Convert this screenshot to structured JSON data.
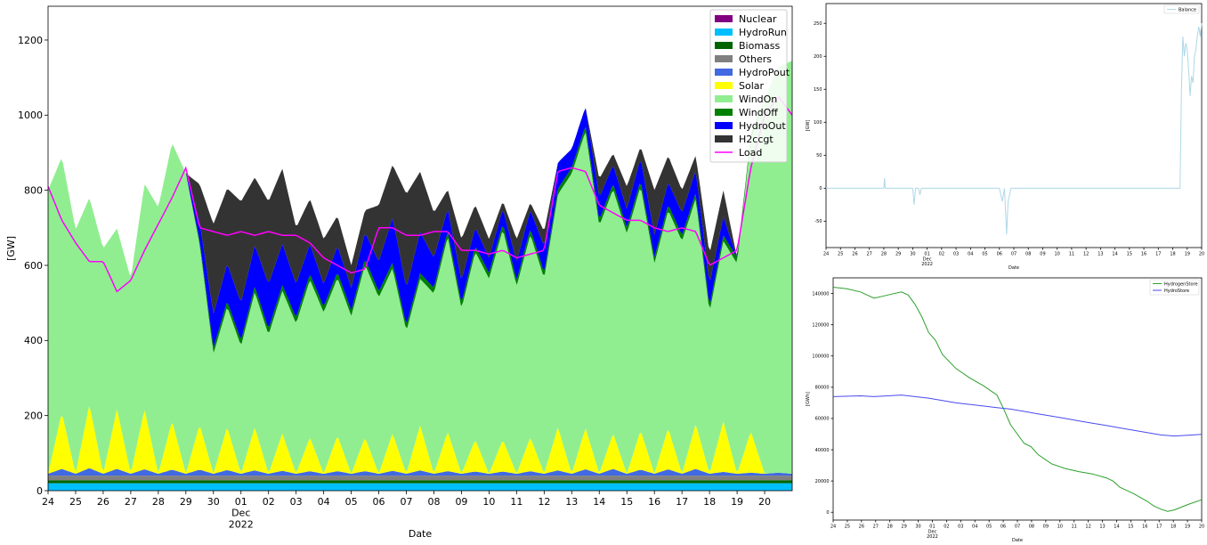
{
  "chart_data": [
    {
      "type": "area",
      "title": "",
      "xlabel": "Date",
      "ylabel": "[GW]",
      "ylim": [
        0,
        1290
      ],
      "yticks": [
        0,
        200,
        400,
        600,
        800,
        1000,
        1200
      ],
      "xlim": [
        24,
        51
      ],
      "xticks": [
        {
          "x": 24,
          "label": "24"
        },
        {
          "x": 25,
          "label": "25"
        },
        {
          "x": 26,
          "label": "26"
        },
        {
          "x": 27,
          "label": "27"
        },
        {
          "x": 28,
          "label": "28"
        },
        {
          "x": 29,
          "label": "29"
        },
        {
          "x": 30,
          "label": "30"
        },
        {
          "x": 31,
          "label": "01",
          "sub": [
            "Dec",
            "2022"
          ]
        },
        {
          "x": 32,
          "label": "02"
        },
        {
          "x": 33,
          "label": "03"
        },
        {
          "x": 34,
          "label": "04"
        },
        {
          "x": 35,
          "label": "05"
        },
        {
          "x": 36,
          "label": "06"
        },
        {
          "x": 37,
          "label": "07"
        },
        {
          "x": 38,
          "label": "08"
        },
        {
          "x": 39,
          "label": "09"
        },
        {
          "x": 40,
          "label": "10"
        },
        {
          "x": 41,
          "label": "11"
        },
        {
          "x": 42,
          "label": "12"
        },
        {
          "x": 43,
          "label": "13"
        },
        {
          "x": 44,
          "label": "14"
        },
        {
          "x": 45,
          "label": "15"
        },
        {
          "x": 46,
          "label": "16"
        },
        {
          "x": 47,
          "label": "17"
        },
        {
          "x": 48,
          "label": "18"
        },
        {
          "x": 49,
          "label": "19"
        },
        {
          "x": 50,
          "label": "20"
        }
      ],
      "legend_position": "top-right",
      "x": [
        24,
        24.5,
        25,
        25.5,
        26,
        26.5,
        27,
        27.5,
        28,
        28.5,
        29,
        29.5,
        30,
        30.5,
        31,
        31.5,
        32,
        32.5,
        33,
        33.5,
        34,
        34.5,
        35,
        35.5,
        36,
        36.5,
        37,
        37.5,
        38,
        38.5,
        39,
        39.5,
        40,
        40.5,
        41,
        41.5,
        42,
        42.5,
        43,
        43.5,
        44,
        44.5,
        45,
        45.5,
        46,
        46.5,
        47,
        47.5,
        48,
        48.5,
        49,
        49.5,
        50,
        50.5,
        51
      ],
      "series": [
        {
          "name": "Nuclear",
          "color": "#800080",
          "values": [
            0,
            0,
            0,
            0,
            0,
            0,
            0,
            0,
            0,
            0,
            0,
            0,
            0,
            0,
            0,
            0,
            0,
            0,
            0,
            0,
            0,
            0,
            0,
            0,
            0,
            0,
            0,
            0,
            0,
            0,
            0,
            0,
            0,
            0,
            0,
            0,
            0,
            0,
            0,
            0,
            0,
            0,
            0,
            0,
            0,
            0,
            0,
            0,
            0,
            0,
            0,
            0,
            0,
            0,
            0
          ]
        },
        {
          "name": "HydroRun",
          "color": "#00bfff",
          "values": [
            20,
            20,
            20,
            20,
            20,
            20,
            20,
            20,
            20,
            20,
            20,
            20,
            20,
            20,
            20,
            20,
            20,
            20,
            20,
            20,
            20,
            20,
            20,
            20,
            20,
            20,
            20,
            20,
            20,
            20,
            20,
            20,
            20,
            20,
            20,
            20,
            20,
            20,
            20,
            20,
            20,
            20,
            20,
            20,
            20,
            20,
            20,
            20,
            20,
            20,
            20,
            20,
            20,
            20,
            20
          ]
        },
        {
          "name": "Biomass",
          "color": "#006400",
          "values": [
            8,
            8,
            8,
            8,
            8,
            8,
            8,
            8,
            8,
            8,
            8,
            8,
            8,
            8,
            8,
            8,
            8,
            8,
            8,
            8,
            8,
            8,
            8,
            8,
            8,
            8,
            8,
            8,
            8,
            8,
            8,
            8,
            8,
            8,
            8,
            8,
            8,
            8,
            8,
            8,
            8,
            8,
            8,
            8,
            8,
            8,
            8,
            8,
            8,
            8,
            8,
            8,
            8,
            8,
            8
          ]
        },
        {
          "name": "Others",
          "color": "#808080",
          "values": [
            12,
            12,
            12,
            12,
            12,
            12,
            12,
            12,
            12,
            12,
            12,
            12,
            12,
            12,
            12,
            12,
            12,
            12,
            12,
            12,
            12,
            12,
            12,
            12,
            12,
            12,
            12,
            12,
            12,
            12,
            12,
            12,
            12,
            12,
            12,
            12,
            12,
            12,
            12,
            12,
            12,
            12,
            12,
            12,
            12,
            12,
            12,
            12,
            12,
            12,
            12,
            12,
            12,
            12,
            12
          ]
        },
        {
          "name": "HydroPout",
          "color": "#4169e1",
          "values": [
            5,
            18,
            5,
            20,
            5,
            18,
            5,
            17,
            5,
            16,
            5,
            16,
            5,
            15,
            5,
            14,
            5,
            13,
            5,
            12,
            5,
            12,
            5,
            12,
            5,
            13,
            5,
            14,
            5,
            12,
            5,
            11,
            5,
            11,
            5,
            12,
            5,
            14,
            5,
            17,
            5,
            18,
            5,
            16,
            5,
            17,
            5,
            18,
            5,
            10,
            5,
            8,
            5,
            8,
            5
          ]
        },
        {
          "name": "Solar",
          "color": "#ffff00",
          "values": [
            0,
            150,
            0,
            170,
            0,
            160,
            0,
            160,
            0,
            130,
            0,
            120,
            0,
            115,
            0,
            115,
            0,
            100,
            0,
            90,
            0,
            95,
            0,
            90,
            0,
            100,
            0,
            120,
            0,
            105,
            0,
            85,
            0,
            85,
            0,
            90,
            0,
            115,
            0,
            110,
            0,
            95,
            0,
            105,
            0,
            110,
            0,
            120,
            0,
            135,
            0,
            110,
            0,
            0,
            0
          ]
        },
        {
          "name": "WindOn",
          "color": "#90ee90",
          "values": [
            755,
            680,
            650,
            550,
            600,
            480,
            520,
            600,
            710,
            740,
            800,
            480,
            320,
            320,
            340,
            360,
            370,
            380,
            400,
            420,
            430,
            420,
            420,
            460,
            470,
            440,
            380,
            390,
            480,
            520,
            440,
            500,
            520,
            560,
            500,
            540,
            520,
            620,
            800,
            790,
            660,
            650,
            640,
            650,
            560,
            580,
            620,
            600,
            430,
            480,
            560,
            780,
            1000,
            1080,
            1100
          ]
        },
        {
          "name": "WindOff",
          "color": "#008000",
          "values": [
            0,
            0,
            0,
            0,
            0,
            0,
            0,
            0,
            0,
            0,
            0,
            10,
            15,
            15,
            15,
            15,
            15,
            15,
            15,
            15,
            15,
            15,
            15,
            15,
            15,
            15,
            15,
            15,
            15,
            15,
            15,
            15,
            15,
            15,
            15,
            15,
            15,
            15,
            15,
            15,
            15,
            15,
            15,
            15,
            15,
            15,
            15,
            15,
            15,
            15,
            15,
            10,
            0,
            0,
            0
          ]
        },
        {
          "name": "HydroOut",
          "color": "#0000ff",
          "values": [
            0,
            0,
            0,
            0,
            0,
            0,
            0,
            0,
            0,
            0,
            0,
            50,
            90,
            100,
            100,
            110,
            120,
            110,
            90,
            80,
            60,
            70,
            60,
            70,
            80,
            120,
            100,
            110,
            80,
            60,
            60,
            50,
            40,
            40,
            50,
            50,
            70,
            70,
            50,
            50,
            60,
            50,
            50,
            60,
            60,
            60,
            60,
            60,
            60,
            50,
            0,
            0,
            0,
            0,
            0
          ]
        },
        {
          "name": "H2ccgt",
          "color": "#333333",
          "values": [
            0,
            0,
            0,
            0,
            0,
            0,
            0,
            0,
            0,
            0,
            0,
            100,
            240,
            200,
            270,
            180,
            220,
            200,
            150,
            120,
            120,
            80,
            60,
            60,
            150,
            140,
            250,
            160,
            120,
            50,
            110,
            60,
            50,
            20,
            60,
            20,
            40,
            0,
            0,
            0,
            50,
            30,
            60,
            30,
            120,
            70,
            60,
            40,
            80,
            70,
            0,
            0,
            0,
            0,
            0
          ]
        },
        {
          "name": "Load",
          "color": "#ff00ff",
          "values": [
            810,
            720,
            660,
            610,
            610,
            530,
            560,
            640,
            710,
            780,
            860,
            700,
            690,
            680,
            690,
            680,
            690,
            680,
            680,
            660,
            620,
            600,
            580,
            590,
            700,
            700,
            680,
            680,
            690,
            690,
            640,
            640,
            630,
            640,
            620,
            630,
            640,
            850,
            860,
            850,
            760,
            740,
            720,
            720,
            700,
            690,
            700,
            690,
            600,
            620,
            640,
            860,
            1000,
            1050,
            1000
          ]
        }
      ]
    },
    {
      "type": "line",
      "title": "",
      "xlabel": "Date",
      "ylabel": "[GW]",
      "ylim": [
        -90,
        280
      ],
      "yticks": [
        -50,
        0,
        50,
        100,
        150,
        200,
        250
      ],
      "xlim": [
        24,
        50
      ],
      "legend_position": "top-right",
      "series": [
        {
          "name": "Balance",
          "color": "#add8e6",
          "x": [
            24,
            28.0,
            28.05,
            28.1,
            28.15,
            30.0,
            30.1,
            30.2,
            30.4,
            30.5,
            30.6,
            31.0,
            36.0,
            36.2,
            36.35,
            36.5,
            36.6,
            36.8,
            37.0,
            48.5,
            48.6,
            48.7,
            48.8,
            48.9,
            49.0,
            49.1,
            49.2,
            49.3,
            49.4,
            49.5,
            49.6,
            49.7,
            49.8,
            49.9,
            50.0
          ],
          "values": [
            0,
            0,
            15,
            0,
            0,
            0,
            -25,
            0,
            0,
            -10,
            0,
            0,
            0,
            -20,
            0,
            -70,
            -20,
            0,
            0,
            0,
            150,
            230,
            200,
            220,
            210,
            180,
            140,
            170,
            160,
            200,
            210,
            230,
            245,
            230,
            250
          ]
        }
      ]
    },
    {
      "type": "line",
      "title": "",
      "xlabel": "Date",
      "ylabel": "[GWh]",
      "ylim": [
        -5000,
        150000
      ],
      "yticks": [
        0,
        20000,
        40000,
        60000,
        80000,
        100000,
        120000,
        140000
      ],
      "xlim": [
        24,
        51
      ],
      "legend_position": "top-right",
      "series": [
        {
          "name": "HydrogenStore",
          "color": "#2ca02c",
          "x": [
            24,
            25,
            26,
            27,
            28,
            29,
            29.5,
            30,
            30.5,
            31,
            31.5,
            32,
            33,
            34,
            35,
            36,
            36.5,
            37,
            37.5,
            38,
            38.5,
            39,
            40,
            41,
            42,
            43,
            44,
            44.5,
            45,
            46,
            47,
            47.5,
            48,
            48.5,
            49,
            50,
            51
          ],
          "values": [
            144000,
            143000,
            141000,
            137000,
            139000,
            141000,
            139000,
            133000,
            125000,
            115000,
            110000,
            101000,
            92000,
            86000,
            81000,
            75000,
            66000,
            56000,
            50000,
            44000,
            42000,
            37000,
            31000,
            28000,
            26000,
            24500,
            22000,
            20000,
            16000,
            12000,
            7000,
            4000,
            2000,
            600,
            1500,
            5000,
            8000
          ]
        },
        {
          "name": "HydroStore",
          "color": "#4a4af0",
          "x": [
            24,
            26,
            27,
            28,
            29,
            30,
            31,
            32,
            33,
            34,
            35,
            36,
            37,
            38,
            39,
            40,
            41,
            42,
            43,
            44,
            45,
            46,
            47,
            48,
            49,
            50,
            51
          ],
          "values": [
            74000,
            74500,
            74000,
            74500,
            75000,
            74000,
            73000,
            71500,
            70000,
            69000,
            68000,
            67000,
            66000,
            64500,
            63000,
            61500,
            60000,
            58500,
            57000,
            55500,
            54000,
            52500,
            51000,
            49500,
            48800,
            49300,
            49800
          ]
        }
      ]
    }
  ]
}
